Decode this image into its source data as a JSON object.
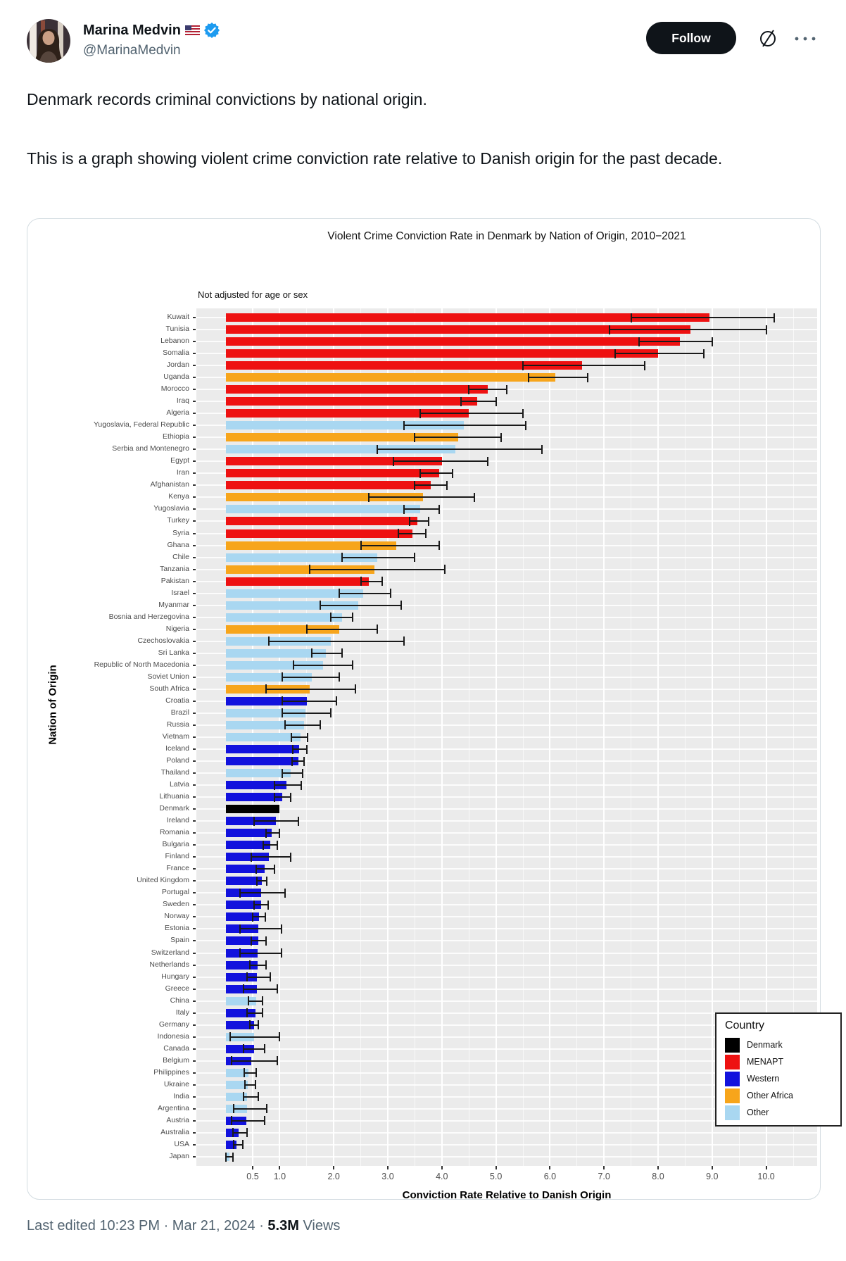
{
  "header": {
    "display_name": "Marina Medvin",
    "flag": "us-flag",
    "verified_badge": "verified-badge",
    "handle": "@MarinaMedvin",
    "follow_label": "Follow"
  },
  "tweet": {
    "line1": "Denmark records criminal convictions by national origin.",
    "line2": "This is a graph showing violent crime conviction rate relative to Danish origin for the past decade."
  },
  "footer": {
    "edited_prefix": "Last edited 10:23 PM · Mar 21, 2024 · ",
    "views_count": "5.3M",
    "views_label": " Views"
  },
  "chart_data": {
    "type": "bar",
    "orientation": "horizontal",
    "title": "Violent Crime Conviction Rate in Denmark by Nation of Origin, 2010−2021",
    "subtitle": "Not adjusted for age or sex",
    "xlabel": "Conviction Rate Relative to Danish Origin",
    "ylabel": "Nation of Origin",
    "xlim": [
      0,
      10.94
    ],
    "xticks": [
      0.5,
      1.0,
      2.0,
      3.0,
      4.0,
      5.0,
      6.0,
      7.0,
      8.0,
      9.0,
      10.0
    ],
    "grid": true,
    "error_bars": true,
    "panel_background": "#ebebeb",
    "legend": {
      "title": "Country",
      "position": "bottom-right",
      "entries": [
        {
          "label": "Denmark",
          "color": "#000000"
        },
        {
          "label": "MENAPT",
          "color": "#ee1111"
        },
        {
          "label": "Western",
          "color": "#1212dd"
        },
        {
          "label": "Other Africa",
          "color": "#f7a51b"
        },
        {
          "label": "Other",
          "color": "#a9d7f1"
        }
      ]
    },
    "rows": [
      {
        "country": "Kuwait",
        "group": "MENAPT",
        "value": 8.95,
        "ci": [
          7.5,
          10.15
        ]
      },
      {
        "country": "Tunisia",
        "group": "MENAPT",
        "value": 8.6,
        "ci": [
          7.1,
          10.0
        ]
      },
      {
        "country": "Lebanon",
        "group": "MENAPT",
        "value": 8.4,
        "ci": [
          7.65,
          9.0
        ]
      },
      {
        "country": "Somalia",
        "group": "MENAPT",
        "value": 8.0,
        "ci": [
          7.2,
          8.85
        ]
      },
      {
        "country": "Jordan",
        "group": "MENAPT",
        "value": 6.6,
        "ci": [
          5.5,
          7.75
        ]
      },
      {
        "country": "Uganda",
        "group": "Other Africa",
        "value": 6.1,
        "ci": [
          5.6,
          6.7
        ]
      },
      {
        "country": "Morocco",
        "group": "MENAPT",
        "value": 4.85,
        "ci": [
          4.5,
          5.2
        ]
      },
      {
        "country": "Iraq",
        "group": "MENAPT",
        "value": 4.65,
        "ci": [
          4.35,
          5.0
        ]
      },
      {
        "country": "Algeria",
        "group": "MENAPT",
        "value": 4.5,
        "ci": [
          3.6,
          5.5
        ]
      },
      {
        "country": "Yugoslavia, Federal Republic",
        "group": "Other",
        "value": 4.4,
        "ci": [
          3.3,
          5.55
        ]
      },
      {
        "country": "Ethiopia",
        "group": "Other Africa",
        "value": 4.3,
        "ci": [
          3.5,
          5.1
        ]
      },
      {
        "country": "Serbia and Montenegro",
        "group": "Other",
        "value": 4.25,
        "ci": [
          2.8,
          5.85
        ]
      },
      {
        "country": "Egypt",
        "group": "MENAPT",
        "value": 4.0,
        "ci": [
          3.1,
          4.85
        ]
      },
      {
        "country": "Iran",
        "group": "MENAPT",
        "value": 3.95,
        "ci": [
          3.6,
          4.2
        ]
      },
      {
        "country": "Afghanistan",
        "group": "MENAPT",
        "value": 3.8,
        "ci": [
          3.5,
          4.1
        ]
      },
      {
        "country": "Kenya",
        "group": "Other Africa",
        "value": 3.65,
        "ci": [
          2.65,
          4.6
        ]
      },
      {
        "country": "Yugoslavia",
        "group": "Other",
        "value": 3.6,
        "ci": [
          3.3,
          3.95
        ]
      },
      {
        "country": "Turkey",
        "group": "MENAPT",
        "value": 3.55,
        "ci": [
          3.4,
          3.75
        ]
      },
      {
        "country": "Syria",
        "group": "MENAPT",
        "value": 3.45,
        "ci": [
          3.2,
          3.7
        ]
      },
      {
        "country": "Ghana",
        "group": "Other Africa",
        "value": 3.15,
        "ci": [
          2.5,
          3.95
        ]
      },
      {
        "country": "Chile",
        "group": "Other",
        "value": 2.8,
        "ci": [
          2.15,
          3.5
        ]
      },
      {
        "country": "Tanzania",
        "group": "Other Africa",
        "value": 2.75,
        "ci": [
          1.55,
          4.05
        ]
      },
      {
        "country": "Pakistan",
        "group": "MENAPT",
        "value": 2.65,
        "ci": [
          2.5,
          2.9
        ]
      },
      {
        "country": "Israel",
        "group": "Other",
        "value": 2.55,
        "ci": [
          2.1,
          3.05
        ]
      },
      {
        "country": "Myanmar",
        "group": "Other",
        "value": 2.45,
        "ci": [
          1.75,
          3.25
        ]
      },
      {
        "country": "Bosnia and Herzegovina",
        "group": "Other",
        "value": 2.15,
        "ci": [
          1.95,
          2.35
        ]
      },
      {
        "country": "Nigeria",
        "group": "Other Africa",
        "value": 2.1,
        "ci": [
          1.5,
          2.8
        ]
      },
      {
        "country": "Czechoslovakia",
        "group": "Other",
        "value": 1.95,
        "ci": [
          0.8,
          3.3
        ]
      },
      {
        "country": "Sri Lanka",
        "group": "Other",
        "value": 1.85,
        "ci": [
          1.6,
          2.15
        ]
      },
      {
        "country": "Republic of North Macedonia",
        "group": "Other",
        "value": 1.8,
        "ci": [
          1.25,
          2.35
        ]
      },
      {
        "country": "Soviet Union",
        "group": "Other",
        "value": 1.6,
        "ci": [
          1.05,
          2.1
        ]
      },
      {
        "country": "South Africa",
        "group": "Other Africa",
        "value": 1.55,
        "ci": [
          0.75,
          2.4
        ]
      },
      {
        "country": "Croatia",
        "group": "Western",
        "value": 1.5,
        "ci": [
          1.05,
          2.05
        ]
      },
      {
        "country": "Brazil",
        "group": "Other",
        "value": 1.48,
        "ci": [
          1.05,
          1.95
        ]
      },
      {
        "country": "Russia",
        "group": "Other",
        "value": 1.45,
        "ci": [
          1.1,
          1.75
        ]
      },
      {
        "country": "Vietnam",
        "group": "Other",
        "value": 1.38,
        "ci": [
          1.22,
          1.52
        ]
      },
      {
        "country": "Iceland",
        "group": "Western",
        "value": 1.36,
        "ci": [
          1.24,
          1.5
        ]
      },
      {
        "country": "Poland",
        "group": "Western",
        "value": 1.34,
        "ci": [
          1.23,
          1.45
        ]
      },
      {
        "country": "Thailand",
        "group": "Other",
        "value": 1.2,
        "ci": [
          1.05,
          1.43
        ]
      },
      {
        "country": "Latvia",
        "group": "Western",
        "value": 1.13,
        "ci": [
          0.9,
          1.4
        ]
      },
      {
        "country": "Lithuania",
        "group": "Western",
        "value": 1.05,
        "ci": [
          0.9,
          1.2
        ]
      },
      {
        "country": "Denmark",
        "group": "Denmark",
        "value": 1.0,
        "ci": null
      },
      {
        "country": "Ireland",
        "group": "Western",
        "value": 0.93,
        "ci": [
          0.53,
          1.35
        ]
      },
      {
        "country": "Romania",
        "group": "Western",
        "value": 0.85,
        "ci": [
          0.75,
          1.0
        ]
      },
      {
        "country": "Bulgaria",
        "group": "Western",
        "value": 0.83,
        "ci": [
          0.7,
          0.95
        ]
      },
      {
        "country": "Finland",
        "group": "Western",
        "value": 0.8,
        "ci": [
          0.48,
          1.2
        ]
      },
      {
        "country": "France",
        "group": "Western",
        "value": 0.72,
        "ci": [
          0.56,
          0.9
        ]
      },
      {
        "country": "United Kingdom",
        "group": "Western",
        "value": 0.67,
        "ci": [
          0.58,
          0.76
        ]
      },
      {
        "country": "Portugal",
        "group": "Western",
        "value": 0.66,
        "ci": [
          0.27,
          1.1
        ]
      },
      {
        "country": "Sweden",
        "group": "Western",
        "value": 0.66,
        "ci": [
          0.53,
          0.79
        ]
      },
      {
        "country": "Norway",
        "group": "Western",
        "value": 0.62,
        "ci": [
          0.5,
          0.73
        ]
      },
      {
        "country": "Estonia",
        "group": "Western",
        "value": 0.61,
        "ci": [
          0.27,
          1.04
        ]
      },
      {
        "country": "Spain",
        "group": "Western",
        "value": 0.6,
        "ci": [
          0.48,
          0.75
        ]
      },
      {
        "country": "Switzerland",
        "group": "Western",
        "value": 0.59,
        "ci": [
          0.27,
          1.03
        ]
      },
      {
        "country": "Netherlands",
        "group": "Western",
        "value": 0.59,
        "ci": [
          0.45,
          0.75
        ]
      },
      {
        "country": "Hungary",
        "group": "Western",
        "value": 0.58,
        "ci": [
          0.4,
          0.82
        ]
      },
      {
        "country": "Greece",
        "group": "Western",
        "value": 0.58,
        "ci": [
          0.33,
          0.95
        ]
      },
      {
        "country": "China",
        "group": "Other",
        "value": 0.56,
        "ci": [
          0.42,
          0.68
        ]
      },
      {
        "country": "Italy",
        "group": "Western",
        "value": 0.55,
        "ci": [
          0.4,
          0.68
        ]
      },
      {
        "country": "Germany",
        "group": "Western",
        "value": 0.53,
        "ci": [
          0.45,
          0.6
        ]
      },
      {
        "country": "Indonesia",
        "group": "Other",
        "value": 0.52,
        "ci": [
          0.08,
          1.0
        ]
      },
      {
        "country": "Canada",
        "group": "Western",
        "value": 0.52,
        "ci": [
          0.33,
          0.72
        ]
      },
      {
        "country": "Belgium",
        "group": "Western",
        "value": 0.47,
        "ci": [
          0.11,
          0.95
        ]
      },
      {
        "country": "Philippines",
        "group": "Other",
        "value": 0.42,
        "ci": [
          0.35,
          0.56
        ]
      },
      {
        "country": "Ukraine",
        "group": "Other",
        "value": 0.41,
        "ci": [
          0.36,
          0.55
        ]
      },
      {
        "country": "India",
        "group": "Other",
        "value": 0.4,
        "ci": [
          0.33,
          0.61
        ]
      },
      {
        "country": "Argentina",
        "group": "Other",
        "value": 0.39,
        "ci": [
          0.15,
          0.76
        ]
      },
      {
        "country": "Austria",
        "group": "Western",
        "value": 0.38,
        "ci": [
          0.11,
          0.72
        ]
      },
      {
        "country": "Australia",
        "group": "Western",
        "value": 0.24,
        "ci": [
          0.13,
          0.4
        ]
      },
      {
        "country": "USA",
        "group": "Western",
        "value": 0.2,
        "ci": [
          0.15,
          0.32
        ]
      },
      {
        "country": "Japan",
        "group": "Other",
        "value": 0.07,
        "ci": [
          0.01,
          0.14
        ]
      }
    ]
  }
}
